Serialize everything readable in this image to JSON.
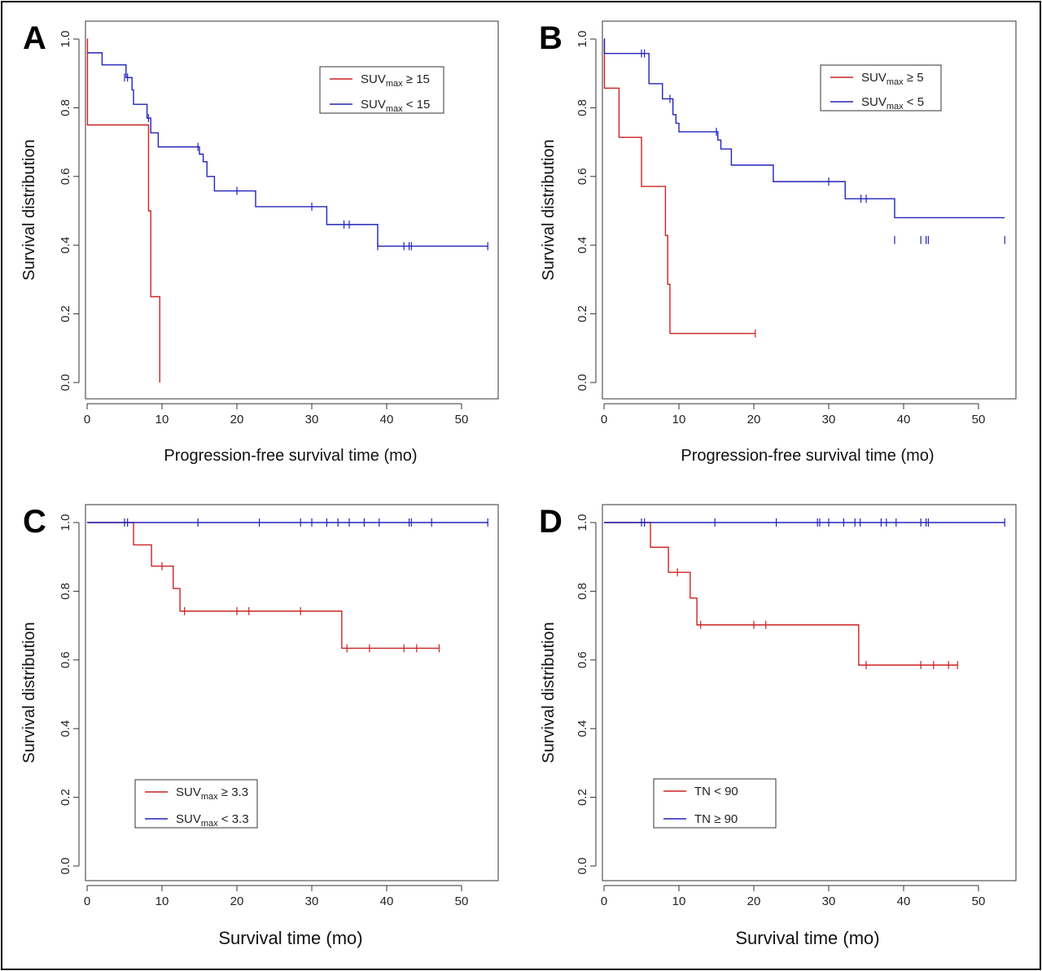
{
  "chart_data": [
    {
      "type": "line",
      "panel": "A",
      "xlabel": "Progression-free survival time (mo)",
      "ylabel": "Survival distribution",
      "xlim": [
        0,
        55
      ],
      "ylim": [
        0,
        1.0
      ],
      "xticks": [
        "0",
        "10",
        "20",
        "30",
        "40",
        "50"
      ],
      "yticks": [
        "0.0",
        "0.2",
        "0.4",
        "0.6",
        "0.8",
        "1.0"
      ],
      "legend": {
        "placement": "top-right",
        "entries": [
          {
            "base": "SUV",
            "sub": "max",
            "rest": " ≥ 15",
            "color": "#cc2222"
          },
          {
            "base": "SUV",
            "sub": "max",
            "rest": " < 15",
            "color": "#2222bb"
          }
        ]
      },
      "series": [
        {
          "color": "#cc2222",
          "x": [
            0,
            0.05,
            8.2,
            8.5,
            9.7
          ],
          "y": [
            1.0,
            0.75,
            0.5,
            0.25,
            0.0
          ],
          "end": 9.7,
          "censors": []
        },
        {
          "color": "#2222bb",
          "x": [
            0,
            2,
            5.2,
            6,
            6.2,
            8,
            8.5,
            9.5,
            15,
            15.5,
            16,
            17,
            22.5,
            32,
            38.8
          ],
          "y": [
            0.96,
            0.925,
            0.888,
            0.852,
            0.81,
            0.77,
            0.727,
            0.686,
            0.665,
            0.643,
            0.6,
            0.558,
            0.512,
            0.46,
            0.397
          ],
          "end": 53.5,
          "censors": [
            {
              "x": 5,
              "y": 0.888
            },
            {
              "x": 5.4,
              "y": 0.888
            },
            {
              "x": 8.2,
              "y": 0.77
            },
            {
              "x": 14.8,
              "y": 0.686
            },
            {
              "x": 20,
              "y": 0.558
            },
            {
              "x": 30,
              "y": 0.512
            },
            {
              "x": 34.3,
              "y": 0.46
            },
            {
              "x": 35,
              "y": 0.46
            },
            {
              "x": 38.8,
              "y": 0.397
            },
            {
              "x": 42.3,
              "y": 0.397
            },
            {
              "x": 43,
              "y": 0.397
            },
            {
              "x": 43.3,
              "y": 0.397
            },
            {
              "x": 53.5,
              "y": 0.397
            }
          ]
        }
      ]
    },
    {
      "type": "line",
      "panel": "B",
      "xlabel": "Progression-free survival time (mo)",
      "ylabel": "Survival distribution",
      "xlim": [
        0,
        55
      ],
      "ylim": [
        0,
        1.0
      ],
      "xticks": [
        "0",
        "10",
        "20",
        "30",
        "40",
        "50"
      ],
      "yticks": [
        "0.0",
        "0.2",
        "0.4",
        "0.6",
        "0.8",
        "1.0"
      ],
      "legend": {
        "placement": "top-right",
        "entries": [
          {
            "base": "SUV",
            "sub": "max",
            "rest": " ≥ 5",
            "color": "#cc2222"
          },
          {
            "base": "SUV",
            "sub": "max",
            "rest": " < 5",
            "color": "#2222bb"
          }
        ]
      },
      "series": [
        {
          "color": "#cc2222",
          "x": [
            0,
            0.05,
            2,
            5,
            8.2,
            8.5,
            8.8
          ],
          "y": [
            1.0,
            0.857,
            0.714,
            0.571,
            0.428,
            0.286,
            0.143
          ],
          "end": 20.2,
          "censors": [
            {
              "x": 20.2,
              "y": 0.143
            }
          ]
        },
        {
          "color": "#2222bb",
          "x": [
            0,
            0.05,
            6,
            7.8,
            9.2,
            9.6,
            10,
            15.2,
            15.6,
            17,
            22.6,
            32.2,
            38.8
          ],
          "y": [
            1.0,
            0.958,
            0.87,
            0.826,
            0.78,
            0.755,
            0.73,
            0.706,
            0.68,
            0.633,
            0.585,
            0.535,
            0.48
          ],
          "end": 53.5,
          "censors": [
            {
              "x": 5,
              "y": 0.958
            },
            {
              "x": 5.4,
              "y": 0.958
            },
            {
              "x": 8.8,
              "y": 0.826
            },
            {
              "x": 15,
              "y": 0.73
            },
            {
              "x": 30,
              "y": 0.585
            },
            {
              "x": 34.3,
              "y": 0.535
            },
            {
              "x": 35,
              "y": 0.535
            },
            {
              "x": 38.8,
              "y": 0.415
            },
            {
              "x": 42.3,
              "y": 0.415
            },
            {
              "x": 43,
              "y": 0.415
            },
            {
              "x": 43.3,
              "y": 0.415
            },
            {
              "x": 53.5,
              "y": 0.415
            }
          ]
        }
      ]
    },
    {
      "type": "line",
      "panel": "C",
      "xlabel": "Survival time (mo)",
      "ylabel": "Survival distribution",
      "xlim": [
        0,
        55
      ],
      "ylim": [
        0,
        1.0
      ],
      "xticks": [
        "0",
        "10",
        "20",
        "30",
        "40",
        "50"
      ],
      "yticks": [
        "0.0",
        "0.2",
        "0.4",
        "0.6",
        "0.8",
        "1.0"
      ],
      "legend": {
        "placement": "bottom-left",
        "entries": [
          {
            "base": "SUV",
            "sub": "max",
            "rest": " ≥ 3.3",
            "color": "#cc2222"
          },
          {
            "base": "SUV",
            "sub": "max",
            "rest": " < 3.3",
            "color": "#2222bb"
          }
        ]
      },
      "series": [
        {
          "color": "#cc2222",
          "x": [
            0,
            6.2,
            8.6,
            11.5,
            12.4,
            34
          ],
          "y": [
            1.0,
            0.935,
            0.873,
            0.808,
            0.742,
            0.634
          ],
          "end": 47,
          "censors": [
            {
              "x": 10,
              "y": 0.873
            },
            {
              "x": 13,
              "y": 0.742
            },
            {
              "x": 20,
              "y": 0.742
            },
            {
              "x": 21.6,
              "y": 0.742
            },
            {
              "x": 28.5,
              "y": 0.742
            },
            {
              "x": 34.7,
              "y": 0.634
            },
            {
              "x": 37.7,
              "y": 0.634
            },
            {
              "x": 42.3,
              "y": 0.634
            },
            {
              "x": 44,
              "y": 0.634
            },
            {
              "x": 47,
              "y": 0.634
            }
          ]
        },
        {
          "color": "#2222bb",
          "x": [
            0
          ],
          "y": [
            1.0
          ],
          "end": 53.5,
          "censors": [
            {
              "x": 5,
              "y": 1.0
            },
            {
              "x": 5.4,
              "y": 1.0
            },
            {
              "x": 14.8,
              "y": 1.0
            },
            {
              "x": 23,
              "y": 1.0
            },
            {
              "x": 28.5,
              "y": 1.0
            },
            {
              "x": 30,
              "y": 1.0
            },
            {
              "x": 32,
              "y": 1.0
            },
            {
              "x": 33.5,
              "y": 1.0
            },
            {
              "x": 35,
              "y": 1.0
            },
            {
              "x": 37,
              "y": 1.0
            },
            {
              "x": 39,
              "y": 1.0
            },
            {
              "x": 43,
              "y": 1.0
            },
            {
              "x": 43.3,
              "y": 1.0
            },
            {
              "x": 46,
              "y": 1.0
            },
            {
              "x": 53.5,
              "y": 1.0
            }
          ]
        }
      ]
    },
    {
      "type": "line",
      "panel": "D",
      "xlabel": "Survival time (mo)",
      "ylabel": "Survival distribution",
      "xlim": [
        0,
        55
      ],
      "ylim": [
        0,
        1.0
      ],
      "xticks": [
        "0",
        "10",
        "20",
        "30",
        "40",
        "50"
      ],
      "yticks": [
        "0.0",
        "0.2",
        "0.4",
        "0.6",
        "0.8",
        "1.0"
      ],
      "legend": {
        "placement": "bottom-left",
        "entries": [
          {
            "base": "TN",
            "sub": "",
            "rest": " < 90",
            "color": "#cc2222"
          },
          {
            "base": "TN",
            "sub": "",
            "rest": " ≥ 90",
            "color": "#2222bb"
          }
        ]
      },
      "series": [
        {
          "color": "#cc2222",
          "x": [
            0,
            6.2,
            8.6,
            11.5,
            12.4,
            34
          ],
          "y": [
            1.0,
            0.928,
            0.855,
            0.78,
            0.702,
            0.585
          ],
          "end": 47.2,
          "censors": [
            {
              "x": 9.8,
              "y": 0.855
            },
            {
              "x": 12.9,
              "y": 0.702
            },
            {
              "x": 20,
              "y": 0.702
            },
            {
              "x": 21.6,
              "y": 0.702
            },
            {
              "x": 35,
              "y": 0.585
            },
            {
              "x": 42.3,
              "y": 0.585
            },
            {
              "x": 44,
              "y": 0.585
            },
            {
              "x": 46,
              "y": 0.585
            },
            {
              "x": 47.2,
              "y": 0.585
            }
          ]
        },
        {
          "color": "#2222bb",
          "x": [
            0
          ],
          "y": [
            1.0
          ],
          "end": 53.5,
          "censors": [
            {
              "x": 5,
              "y": 1.0
            },
            {
              "x": 5.4,
              "y": 1.0
            },
            {
              "x": 14.8,
              "y": 1.0
            },
            {
              "x": 23,
              "y": 1.0
            },
            {
              "x": 28.5,
              "y": 1.0
            },
            {
              "x": 28.8,
              "y": 1.0
            },
            {
              "x": 30,
              "y": 1.0
            },
            {
              "x": 32,
              "y": 1.0
            },
            {
              "x": 33.5,
              "y": 1.0
            },
            {
              "x": 34.2,
              "y": 1.0
            },
            {
              "x": 37,
              "y": 1.0
            },
            {
              "x": 37.7,
              "y": 1.0
            },
            {
              "x": 39,
              "y": 1.0
            },
            {
              "x": 42.3,
              "y": 1.0
            },
            {
              "x": 43,
              "y": 1.0
            },
            {
              "x": 43.3,
              "y": 1.0
            },
            {
              "x": 53.5,
              "y": 1.0
            }
          ]
        }
      ]
    }
  ]
}
